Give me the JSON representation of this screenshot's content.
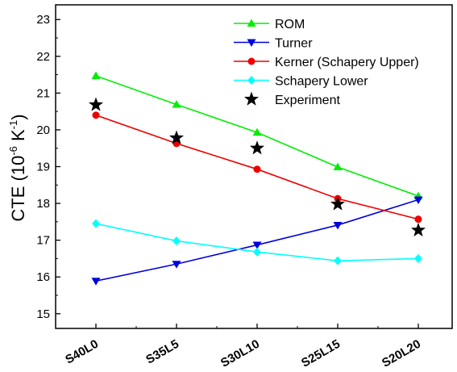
{
  "chart_data": {
    "type": "line",
    "title": "",
    "xlabel": "",
    "ylabel": {
      "prefix": "CTE (10",
      "exp1": "-6",
      "mid": " K",
      "exp2": "-1",
      "suffix": ")"
    },
    "categories": [
      "S40L0",
      "S35L5",
      "S30L10",
      "S25L15",
      "S20L20"
    ],
    "ylim": [
      14.6,
      23.4
    ],
    "yticks": [
      15,
      16,
      17,
      18,
      19,
      20,
      21,
      22,
      23
    ],
    "grid": false,
    "legend_position": "top-right",
    "series": [
      {
        "name": "ROM",
        "values": [
          21.47,
          20.69,
          19.93,
          18.99,
          18.2
        ],
        "color": "#00ee00",
        "marker": "triangle-up",
        "line": true
      },
      {
        "name": "Turner",
        "values": [
          15.89,
          16.35,
          16.87,
          17.41,
          18.1
        ],
        "color": "#0000dd",
        "marker": "triangle-down",
        "line": true
      },
      {
        "name": "Kerner (Schapery Upper)",
        "values": [
          20.4,
          19.63,
          18.93,
          18.13,
          17.57
        ],
        "color": "#ee0000",
        "marker": "circle",
        "line": true
      },
      {
        "name": "Schapery Lower",
        "values": [
          17.45,
          16.98,
          16.68,
          16.44,
          16.5
        ],
        "color": "#00ffff",
        "marker": "diamond",
        "line": true
      },
      {
        "name": "Experiment",
        "values": [
          20.68,
          19.78,
          19.5,
          17.98,
          17.27
        ],
        "color": "#000000",
        "marker": "star",
        "line": false
      }
    ]
  }
}
